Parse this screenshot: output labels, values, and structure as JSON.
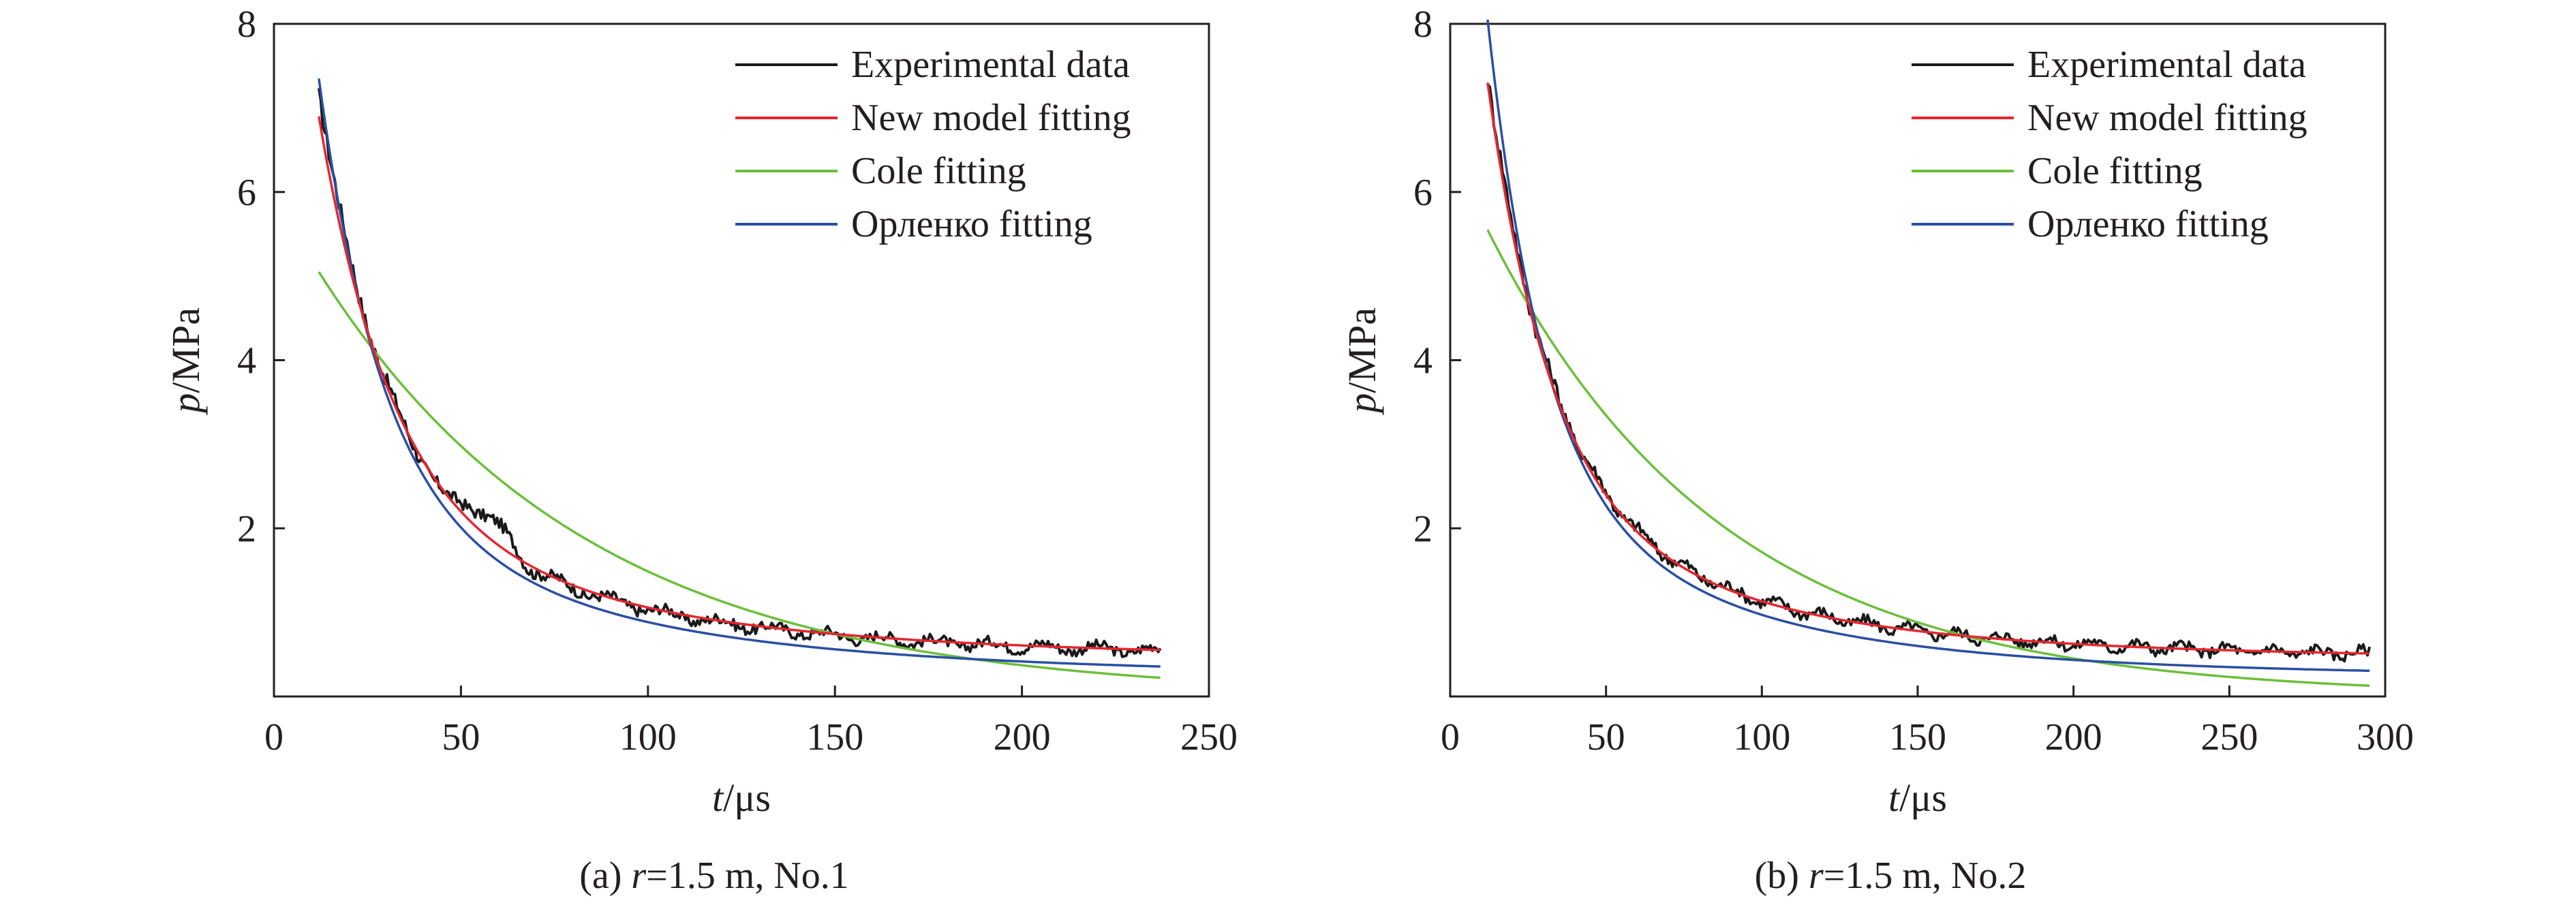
{
  "colors": {
    "experimental": "#1a1a1a",
    "new_model": "#e5262e",
    "cole": "#6cbf3c",
    "orlenko": "#2a4fa3",
    "axis": "#231f20"
  },
  "chart_data": [
    {
      "type": "line",
      "caption_prefix": "(a) ",
      "caption_var": "r",
      "caption_rest": "=1.5 m, No.1",
      "xlabel_var": "t",
      "xlabel_unit": "/μs",
      "ylabel_var": "p",
      "ylabel_unit": "/MPa",
      "xlim": [
        0,
        250
      ],
      "ylim": [
        0,
        8
      ],
      "xticks": [
        "0",
        "50",
        "100",
        "150",
        "200",
        "250"
      ],
      "yticks": [
        "2",
        "4",
        "6",
        "8"
      ],
      "legend_position": "top-right",
      "grid": false,
      "series": [
        {
          "name": "Experimental data",
          "key": "experimental",
          "t0": 12,
          "t1": 237,
          "p0": 6.9,
          "tau": 18,
          "a_inf": 0.3,
          "amp_inf": 0.45,
          "noise": true
        },
        {
          "name": "New model fitting",
          "key": "new_model",
          "t0": 12,
          "t1": 237,
          "p0": 6.6,
          "tau": 19,
          "a_inf": 0.3,
          "amp_inf": 0.45,
          "noise": false
        },
        {
          "name": "Cole fitting",
          "key": "cole",
          "t0": 12,
          "t1": 237,
          "p0": 5.05,
          "theta": 72,
          "noise": false,
          "cole": true
        },
        {
          "name": "Орленко fitting",
          "key": "orlenko",
          "t0": 12,
          "t1": 237,
          "p0": 6.8,
          "tau": 16.5,
          "a_inf": 0.55,
          "amp_inf": 0.22,
          "noise": false
        }
      ]
    },
    {
      "type": "line",
      "caption_prefix": "(b) ",
      "caption_var": "r",
      "caption_rest": "=1.5 m, No.2",
      "xlabel_var": "t",
      "xlabel_unit": "/μs",
      "ylabel_var": "p",
      "ylabel_unit": "/MPa",
      "xlim": [
        0,
        300
      ],
      "ylim": [
        0,
        8
      ],
      "xticks": [
        "0",
        "50",
        "100",
        "150",
        "200",
        "250",
        "300"
      ],
      "yticks": [
        "2",
        "4",
        "6",
        "8"
      ],
      "legend_position": "top-right",
      "grid": false,
      "series": [
        {
          "name": "Experimental data",
          "key": "experimental",
          "t0": 12,
          "t1": 295,
          "p0": 7.1,
          "tau": 20,
          "a_inf": 0.3,
          "amp_inf": 0.45,
          "noise": true
        },
        {
          "name": "New model fitting",
          "key": "new_model",
          "t0": 12,
          "t1": 295,
          "p0": 7.0,
          "tau": 20,
          "a_inf": 0.3,
          "amp_inf": 0.45,
          "noise": false
        },
        {
          "name": "Cole fitting",
          "key": "cole",
          "t0": 12,
          "t1": 295,
          "p0": 5.55,
          "theta": 75,
          "noise": false,
          "cole": true
        },
        {
          "name": "Орленко fitting",
          "key": "orlenko",
          "t0": 12,
          "t1": 295,
          "p0": 7.5,
          "tau": 17.5,
          "a_inf": 0.55,
          "amp_inf": 0.22,
          "noise": false
        }
      ]
    }
  ]
}
